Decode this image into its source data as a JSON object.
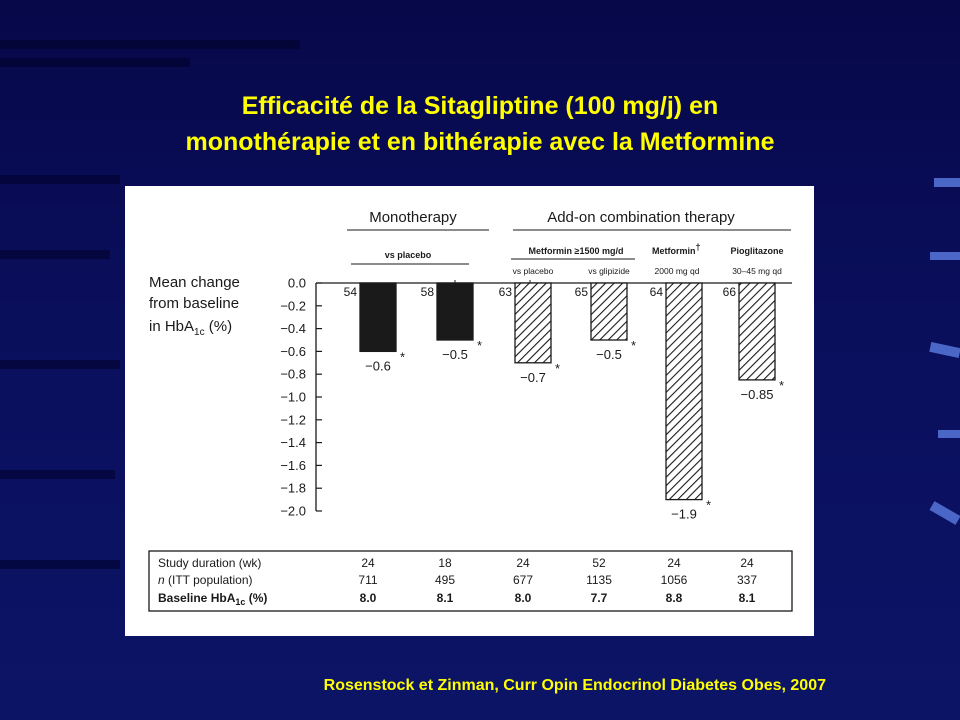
{
  "slide": {
    "title_line1": "Efficacité de la Sitagliptine (100 mg/j) en",
    "title_line2": "monothérapie et en bithérapie avec la Metformine",
    "citation": "Rosenstock et Zinman, Curr Opin Endocrinol Diabetes Obes, 2007"
  },
  "colors": {
    "background": "#0a0f5c",
    "title": "#ffff00",
    "bar_solid": "#1a1a1a",
    "bar_hatch": "#1a1a1a"
  },
  "chart_data": {
    "type": "bar",
    "ylabel_lines": [
      "Mean change",
      "from baseline",
      "in HbA",
      "1c",
      " (%)"
    ],
    "ylim": [
      -2.0,
      0.0
    ],
    "yticks": [
      "0.0",
      "−0.2",
      "−0.4",
      "−0.6",
      "−0.8",
      "−1.0",
      "−1.2",
      "−1.4",
      "−1.6",
      "−1.8",
      "−2.0"
    ],
    "group_headers": [
      "Monotherapy",
      "Add-on combination therapy"
    ],
    "subgroup_headers": {
      "vs_placebo": "vs placebo",
      "metformin_1500": "Metformin ≥1500 mg/d",
      "metformin_dagger": "Metformin",
      "dagger": "†",
      "pioglitazone": "Pioglitazone"
    },
    "bar_sublabels": [
      "",
      "",
      "vs placebo",
      "vs glipizide",
      "2000 mg qd",
      "30–45 mg qd"
    ],
    "bars": [
      {
        "n": "54",
        "value": -0.6,
        "label": "−0.6",
        "style": "solid",
        "marker": "*"
      },
      {
        "n": "58",
        "value": -0.5,
        "label": "−0.5",
        "style": "solid",
        "marker": "*"
      },
      {
        "n": "63",
        "value": -0.7,
        "label": "−0.7",
        "style": "hatch",
        "marker": "*"
      },
      {
        "n": "65",
        "value": -0.5,
        "label": "−0.5",
        "style": "hatch",
        "marker": "*"
      },
      {
        "n": "64",
        "value": -1.9,
        "label": "−1.9",
        "style": "hatch",
        "marker": "*"
      },
      {
        "n": "66",
        "value": -0.85,
        "label": "−0.85",
        "style": "hatch",
        "marker": "*"
      }
    ],
    "table": {
      "rows": [
        {
          "label": "Study duration (wk)",
          "values": [
            "24",
            "18",
            "24",
            "52",
            "24",
            "24"
          ],
          "bold": false
        },
        {
          "label_italic": "n",
          "label": " (ITT population)",
          "values": [
            "711",
            "495",
            "677",
            "1135",
            "1056",
            "337"
          ],
          "bold": false
        },
        {
          "label": "Baseline HbA",
          "label_sub": "1c",
          "label_tail": " (%)",
          "values": [
            "8.0",
            "8.1",
            "8.0",
            "7.7",
            "8.8",
            "8.1"
          ],
          "bold": true
        }
      ]
    }
  }
}
